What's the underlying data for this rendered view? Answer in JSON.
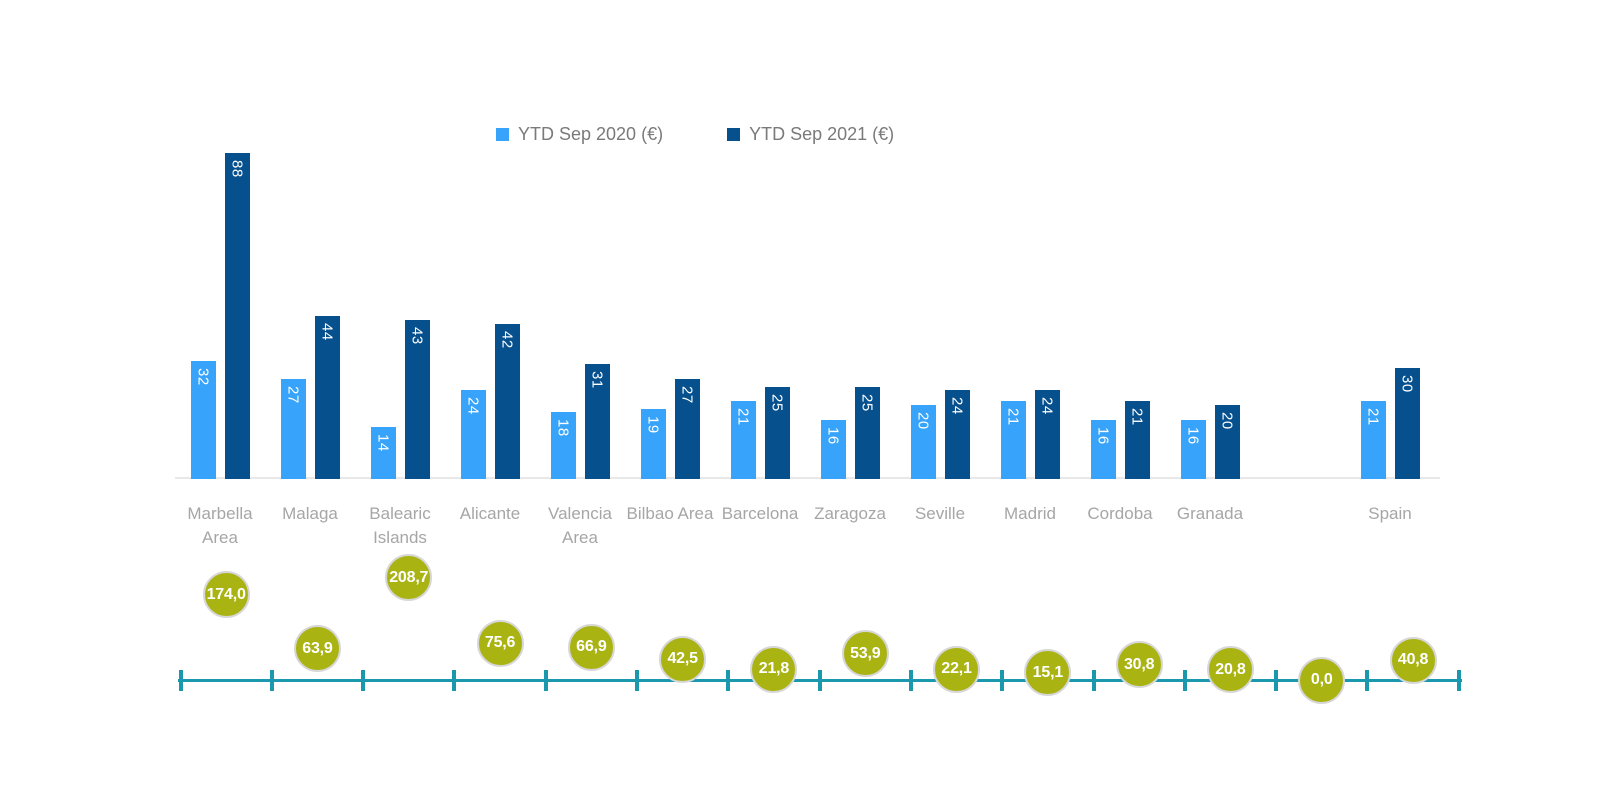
{
  "chart_data": {
    "type": "bar",
    "title": "",
    "categories": [
      "Marbella Area",
      "Malaga",
      "Balearic Islands",
      "Alicante",
      "Valencia Area",
      "Bilbao Area",
      "Barcelona",
      "Zaragoza",
      "Seville",
      "Madrid",
      "Cordoba",
      "Granada",
      "",
      "Spain"
    ],
    "series": [
      {
        "name": "YTD Sep 2020 (€)",
        "color": "#38a3fa",
        "values": [
          32,
          27,
          14,
          24,
          18,
          19,
          21,
          16,
          20,
          21,
          16,
          16,
          null,
          21
        ]
      },
      {
        "name": "YTD Sep 2021 (€)",
        "color": "#07508e",
        "values": [
          88,
          44,
          43,
          42,
          31,
          27,
          25,
          25,
          24,
          24,
          21,
          20,
          null,
          30
        ]
      }
    ],
    "growth_markers": {
      "color": "#a9b312",
      "axis_color": "#1b98ae",
      "values": [
        174.0,
        63.9,
        208.7,
        75.6,
        66.9,
        42.5,
        21.8,
        53.9,
        22.1,
        15.1,
        30.8,
        20.8,
        0.0,
        40.8
      ],
      "labels": [
        "174,0",
        "63,9",
        "208,7",
        "75,6",
        "66,9",
        "42,5",
        "21,8",
        "53,9",
        "22,1",
        "15,1",
        "30,8",
        "20,8",
        "0,0",
        "40,8"
      ]
    },
    "ylim": [
      0,
      88
    ],
    "grid": false,
    "legend_position": "top",
    "bar_value_labels": "inside-end, rotated vertical, white"
  },
  "colors": {
    "bar_label_text": "#ffffff",
    "category_label_text": "#a6a6a6",
    "legend_text": "#7a7a7a",
    "axis_baseline": "#e8e8e8",
    "marker_ring": "#d7d7d7"
  }
}
